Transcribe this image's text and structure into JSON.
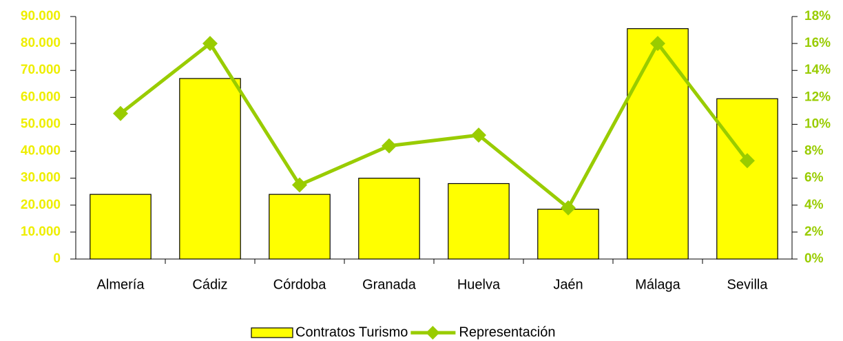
{
  "chart_data": {
    "type": "bar",
    "categories": [
      "Almería",
      "Cádiz",
      "Córdoba",
      "Granada",
      "Huelva",
      "Jaén",
      "Málaga",
      "Sevilla"
    ],
    "series": [
      {
        "name": "Contratos Turismo",
        "type": "bar",
        "color": "#ffff00",
        "values": [
          24000,
          67000,
          24000,
          30000,
          28000,
          18500,
          85500,
          59500
        ]
      },
      {
        "name": "Representación",
        "type": "line",
        "axis": "y2",
        "color": "#99cc00",
        "values": [
          10.8,
          16.0,
          5.5,
          8.4,
          9.2,
          3.8,
          16.0,
          7.3
        ]
      }
    ],
    "ylim": [
      0,
      90000
    ],
    "yticks": [
      0,
      {
        "value": 10000,
        "label": "10.000"
      },
      {
        "value": 20000,
        "label": "20.000"
      },
      {
        "value": 30000,
        "label": "30.000"
      },
      {
        "value": 40000,
        "label": "40.000"
      },
      {
        "value": 50000,
        "label": "50.000"
      },
      {
        "value": 60000,
        "label": "60.000"
      },
      {
        "value": 70000,
        "label": "70.000"
      },
      {
        "value": 80000,
        "label": "80.000"
      },
      {
        "value": 90000,
        "label": "90.000"
      }
    ],
    "y2lim": [
      0,
      18
    ],
    "y2ticks": [
      {
        "value": 0,
        "label": "0%"
      },
      {
        "value": 2,
        "label": "2%"
      },
      {
        "value": 4,
        "label": "4%"
      },
      {
        "value": 6,
        "label": "6%"
      },
      {
        "value": 8,
        "label": "8%"
      },
      {
        "value": 10,
        "label": "10%"
      },
      {
        "value": 12,
        "label": "12%"
      },
      {
        "value": 14,
        "label": "14%"
      },
      {
        "value": 16,
        "label": "16%"
      },
      {
        "value": 18,
        "label": "18%"
      }
    ],
    "ytick_color": "#eeee00",
    "y2tick_color": "#99cc00",
    "legend": "bottom",
    "grid": false
  }
}
